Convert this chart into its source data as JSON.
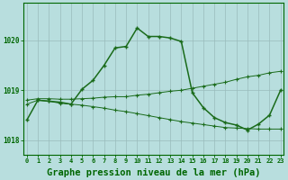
{
  "title": "Graphe pression niveau de la mer (hPa)",
  "hours": [
    0,
    1,
    2,
    3,
    4,
    5,
    6,
    7,
    8,
    9,
    10,
    11,
    12,
    13,
    14,
    15,
    16,
    17,
    18,
    19,
    20,
    21,
    22,
    23
  ],
  "line_main": [
    1018.4,
    1018.8,
    1018.78,
    1018.76,
    1018.72,
    1019.02,
    1019.2,
    1019.5,
    1019.85,
    1019.88,
    1020.25,
    1020.08,
    1020.08,
    1020.05,
    1019.98,
    1018.95,
    1018.65,
    1018.45,
    1018.35,
    1018.3,
    1018.2,
    1018.32,
    1018.5,
    1019.0
  ],
  "line_upper": [
    1018.8,
    1018.83,
    1018.83,
    1018.82,
    1018.82,
    1018.83,
    1018.84,
    1018.86,
    1018.87,
    1018.87,
    1018.9,
    1018.92,
    1018.95,
    1018.98,
    1019.0,
    1019.04,
    1019.08,
    1019.12,
    1019.16,
    1019.22,
    1019.27,
    1019.3,
    1019.35,
    1019.38
  ],
  "line_lower": [
    1018.72,
    1018.8,
    1018.78,
    1018.74,
    1018.72,
    1018.7,
    1018.67,
    1018.64,
    1018.6,
    1018.57,
    1018.53,
    1018.49,
    1018.45,
    1018.41,
    1018.37,
    1018.34,
    1018.31,
    1018.28,
    1018.25,
    1018.24,
    1018.23,
    1018.22,
    1018.22,
    1018.22
  ],
  "bg_color": "#b8dede",
  "grid_color_major": "#99bbbb",
  "grid_color_minor": "#aacccc",
  "line_color": "#1a6b1a",
  "axis_color": "#006600",
  "ylim_min": 1017.7,
  "ylim_max": 1020.75,
  "yticks": [
    1018,
    1019,
    1020
  ],
  "title_fontsize": 7.5,
  "tick_fontsize": 5.5,
  "xtick_fontsize": 5.0
}
